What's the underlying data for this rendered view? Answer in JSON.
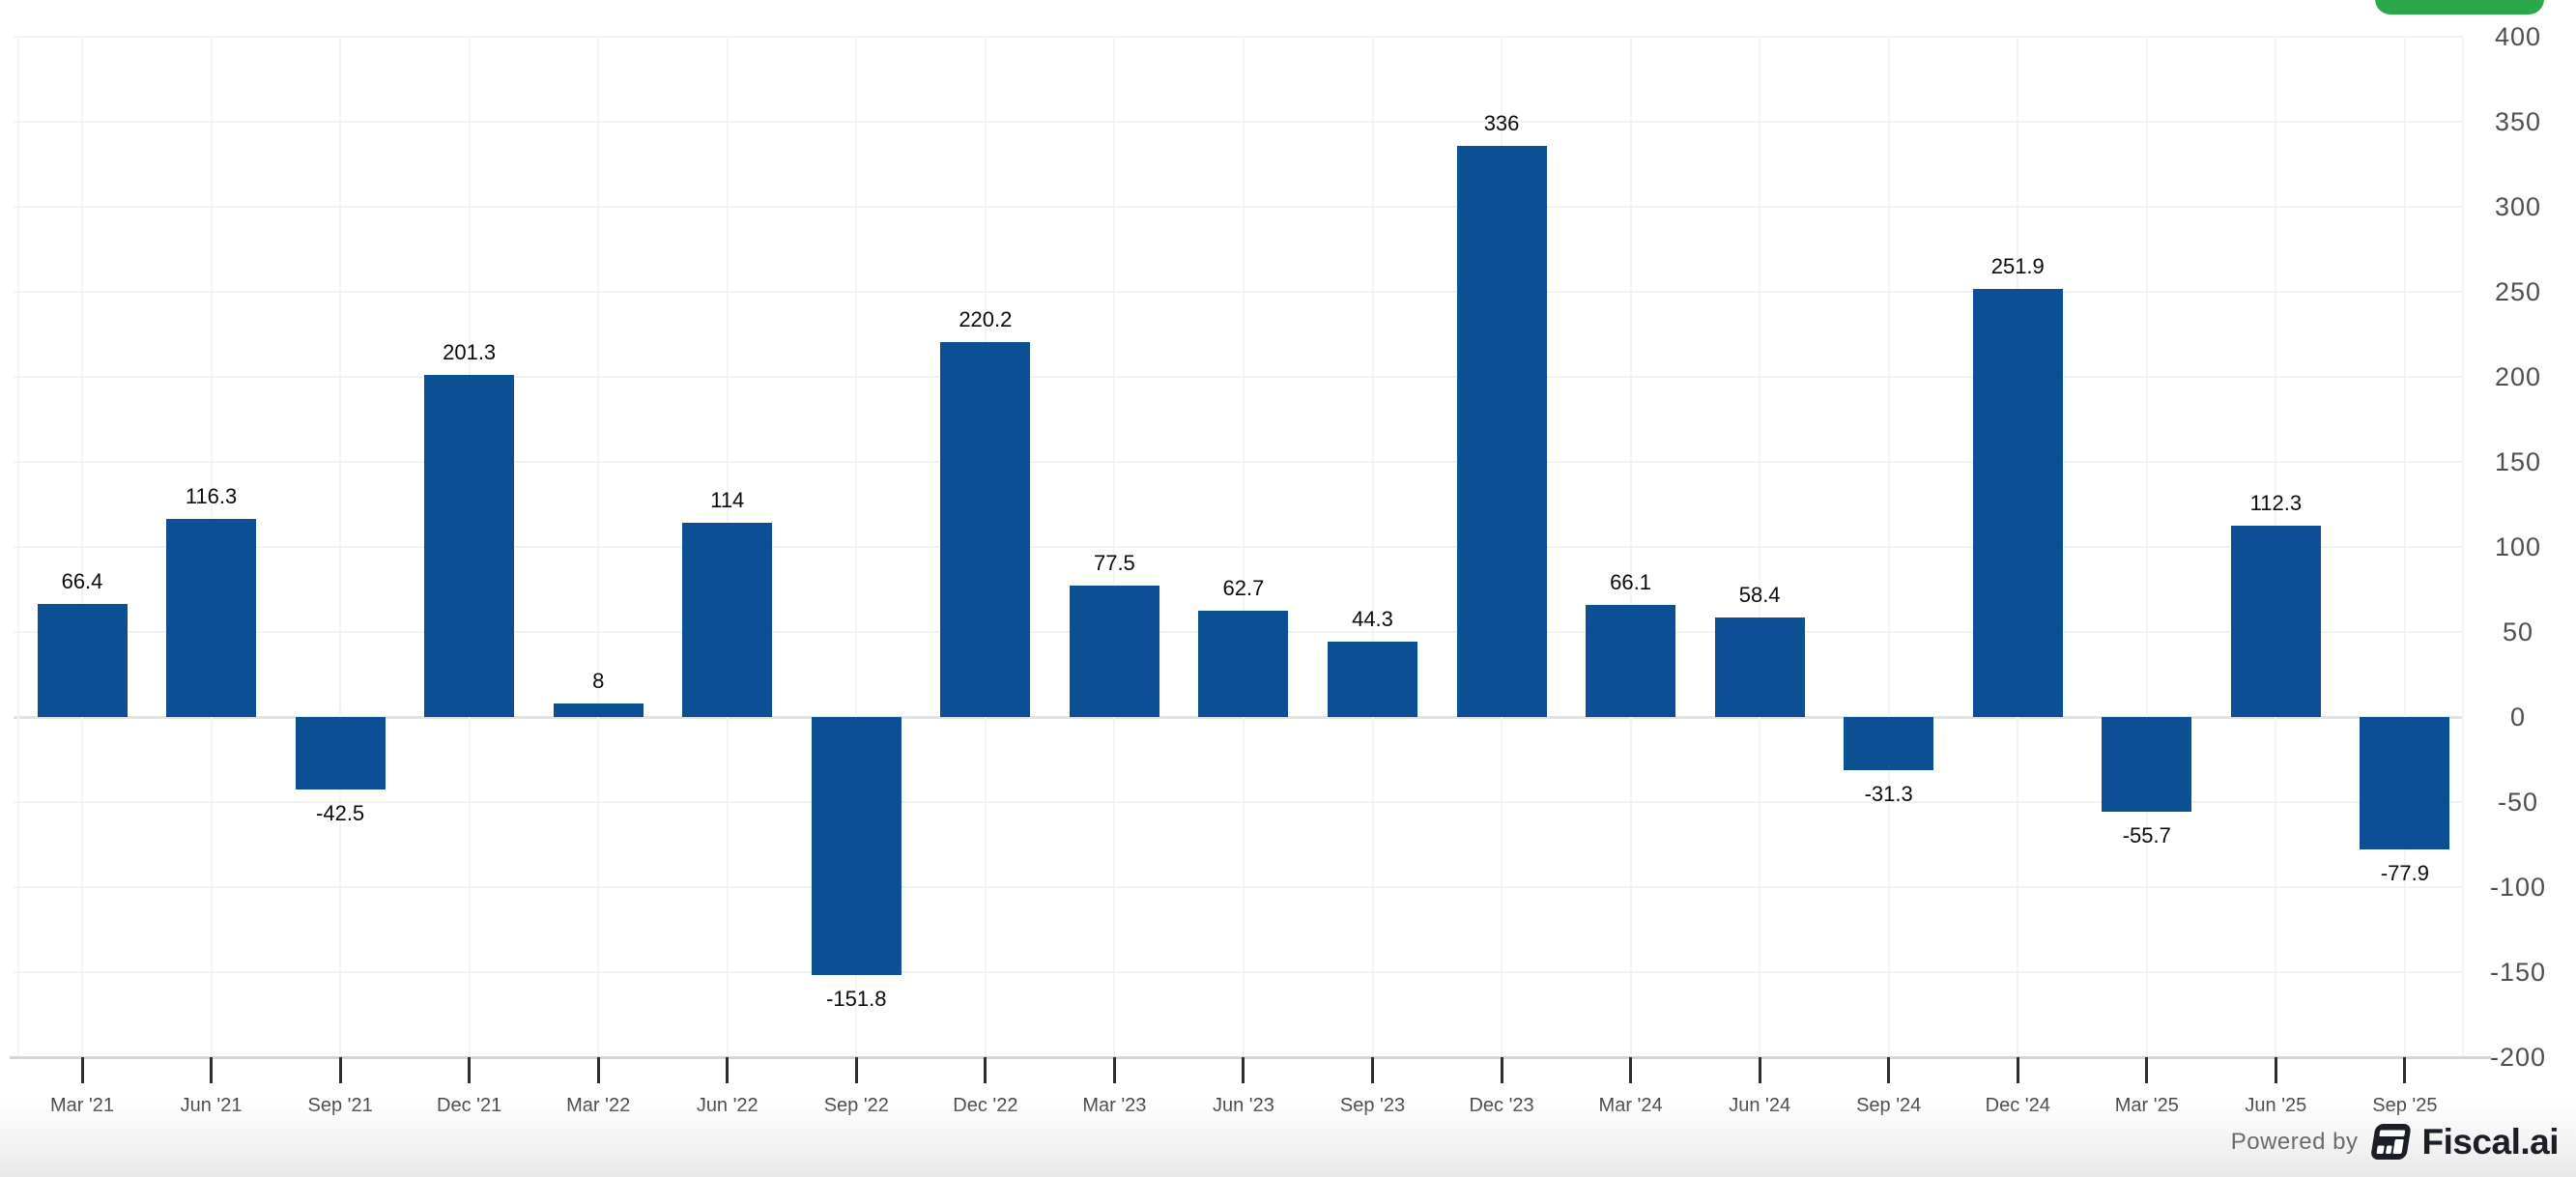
{
  "header": {
    "action_button": {
      "label": "",
      "color": "#2BA94A"
    }
  },
  "chart_data": {
    "type": "bar",
    "title": "",
    "xlabel": "",
    "ylabel": "",
    "categories": [
      "Mar '21",
      "Jun '21",
      "Sep '21",
      "Dec '21",
      "Mar '22",
      "Jun '22",
      "Sep '22",
      "Dec '22",
      "Mar '23",
      "Jun '23",
      "Sep '23",
      "Dec '23",
      "Mar '24",
      "Jun '24",
      "Sep '24",
      "Dec '24",
      "Mar '25",
      "Jun '25",
      "Sep '25"
    ],
    "values": [
      66.4,
      116.3,
      -42.5,
      201.3,
      8,
      114,
      -151.8,
      220.2,
      77.5,
      62.7,
      44.3,
      336,
      66.1,
      58.4,
      -31.3,
      251.9,
      -55.7,
      112.3,
      -77.9
    ],
    "value_labels": [
      "66.4",
      "116.3",
      "-42.5",
      "201.3",
      "8",
      "114",
      "-151.8",
      "220.2",
      "77.5",
      "62.7",
      "44.3",
      "336",
      "66.1",
      "58.4",
      "-31.3",
      "251.9",
      "-55.7",
      "112.3",
      "-77.9"
    ],
    "yticks": [
      400,
      350,
      300,
      250,
      200,
      150,
      100,
      50,
      0,
      -50,
      -100,
      -150,
      -200
    ],
    "ytick_labels": [
      "400",
      "350",
      "300",
      "250",
      "200",
      "150",
      "100",
      "50",
      "0",
      "-50",
      "-100",
      "-150",
      "-200"
    ],
    "ylim": [
      -200,
      400
    ],
    "grid": "on",
    "legend_position": "none",
    "bar_color": "#0B5094",
    "grid_color": "#f2f2f2",
    "zero_line_color": "#e2e2e2",
    "axis_line_color": "#d5d5d5",
    "value_label_color": "#0a0a0a",
    "xtick_color": "#474747",
    "ytick_color": "#4f4f4f"
  },
  "footer": {
    "powered_by": "Powered by",
    "brand": "Fiscal.ai"
  }
}
